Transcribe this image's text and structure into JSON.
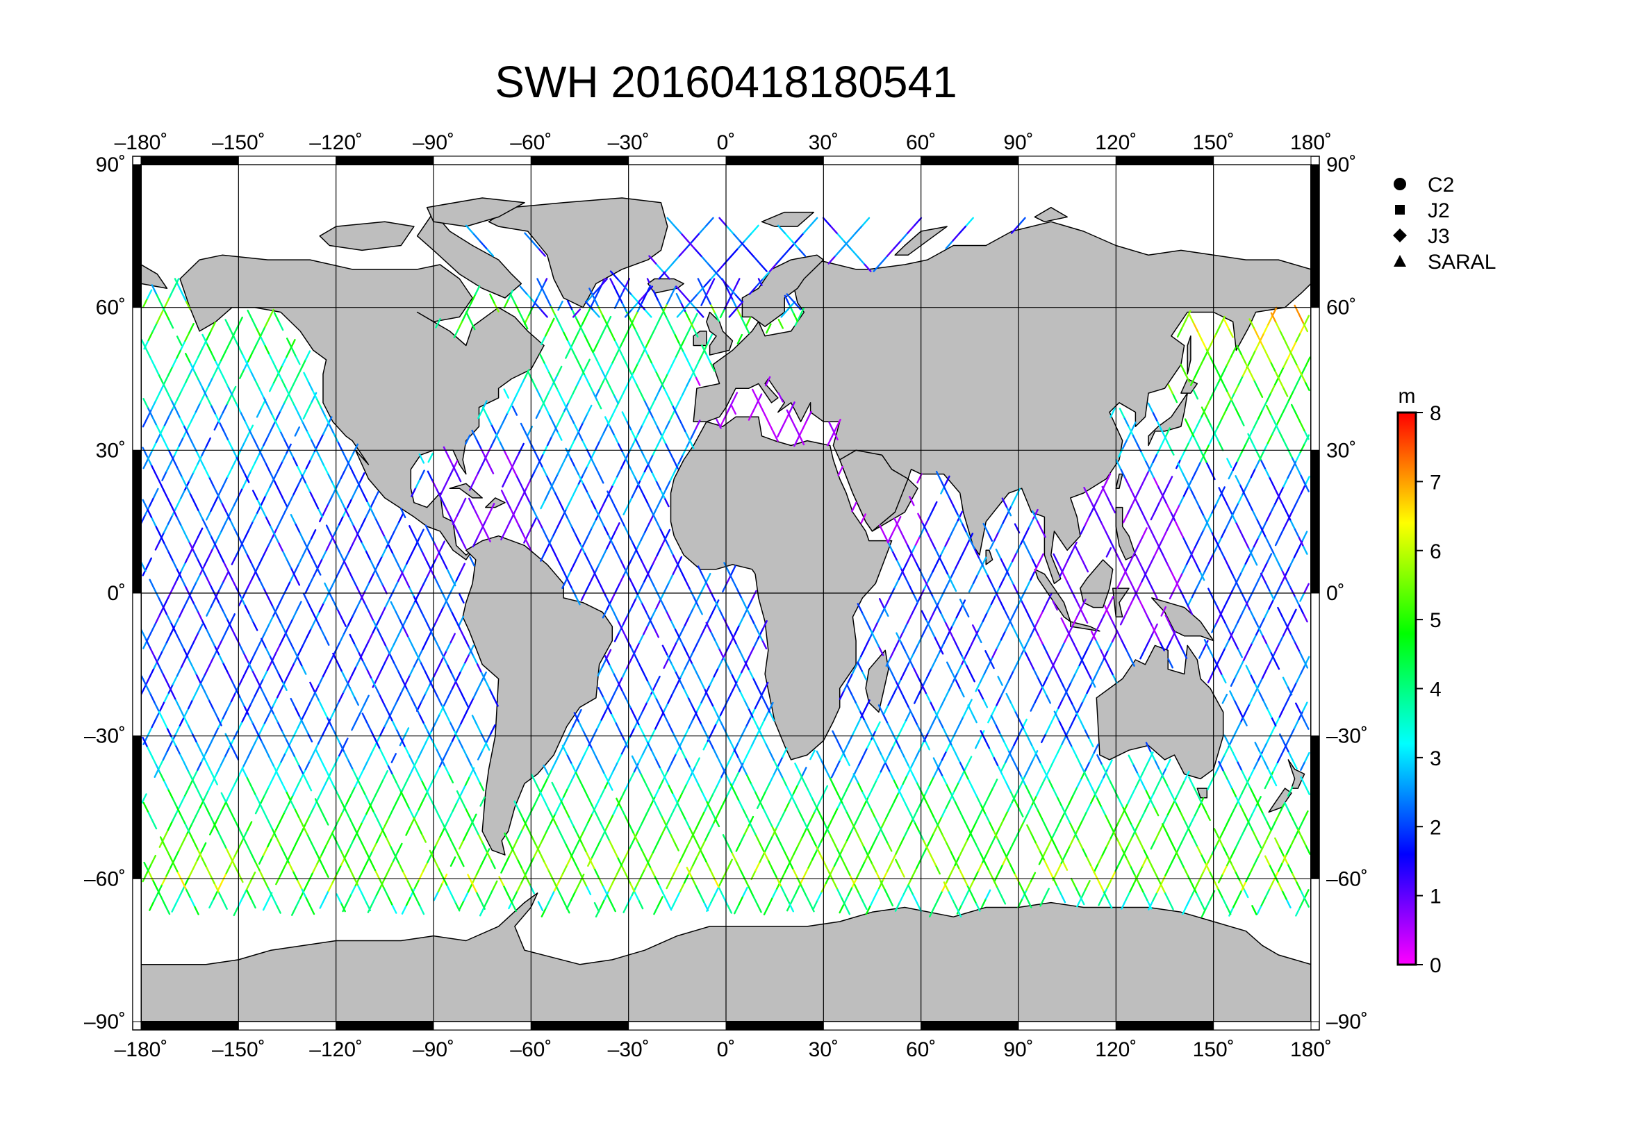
{
  "title": "SWH 20160418180541",
  "map": {
    "projection": "plate-carree",
    "lon_range": [
      -180,
      180
    ],
    "lat_range": [
      -90,
      90
    ],
    "grid_step_deg": 30,
    "land_color": "#bebebe",
    "ocean_color": "#ffffff",
    "coastline_color": "#000000",
    "frame_color": "#000000"
  },
  "axes": {
    "lon_ticks": [
      "–180˚",
      "–150˚",
      "–120˚",
      "–90˚",
      "–60˚",
      "–30˚",
      "0˚",
      "30˚",
      "60˚",
      "90˚",
      "120˚",
      "150˚",
      "180˚"
    ],
    "lat_ticks": [
      "90˚",
      "60˚",
      "30˚",
      "0˚",
      "–30˚",
      "–60˚",
      "–90˚"
    ]
  },
  "legend": {
    "items": [
      {
        "label": "C2",
        "symbol": "circle"
      },
      {
        "label": "J2",
        "symbol": "square"
      },
      {
        "label": "J3",
        "symbol": "diamond"
      },
      {
        "label": "SARAL",
        "symbol": "triangle"
      }
    ]
  },
  "colorbar": {
    "unit": "m",
    "min": 0,
    "max": 8,
    "tick_labels": [
      "8",
      "7",
      "6",
      "5",
      "4",
      "3",
      "2",
      "1",
      "0"
    ],
    "colormap": "rainbow-magenta-to-red",
    "stops": [
      "#ff00ff",
      "#8000ff",
      "#0000ff",
      "#0080ff",
      "#00ffff",
      "#00ff80",
      "#00ff00",
      "#80ff00",
      "#ffff00",
      "#ff8000",
      "#ff0000"
    ]
  },
  "chart_data": {
    "type": "scatter",
    "title": "SWH 20160418180541",
    "variable": "significant wave height",
    "unit": "m",
    "xlim": [
      -180,
      180
    ],
    "ylim": [
      -90,
      90
    ],
    "color_range": [
      0,
      8
    ],
    "series": [
      {
        "name": "C2",
        "marker": "circle"
      },
      {
        "name": "J2",
        "marker": "square"
      },
      {
        "name": "J3",
        "marker": "diamond"
      },
      {
        "name": "SARAL",
        "marker": "triangle"
      }
    ]
  }
}
